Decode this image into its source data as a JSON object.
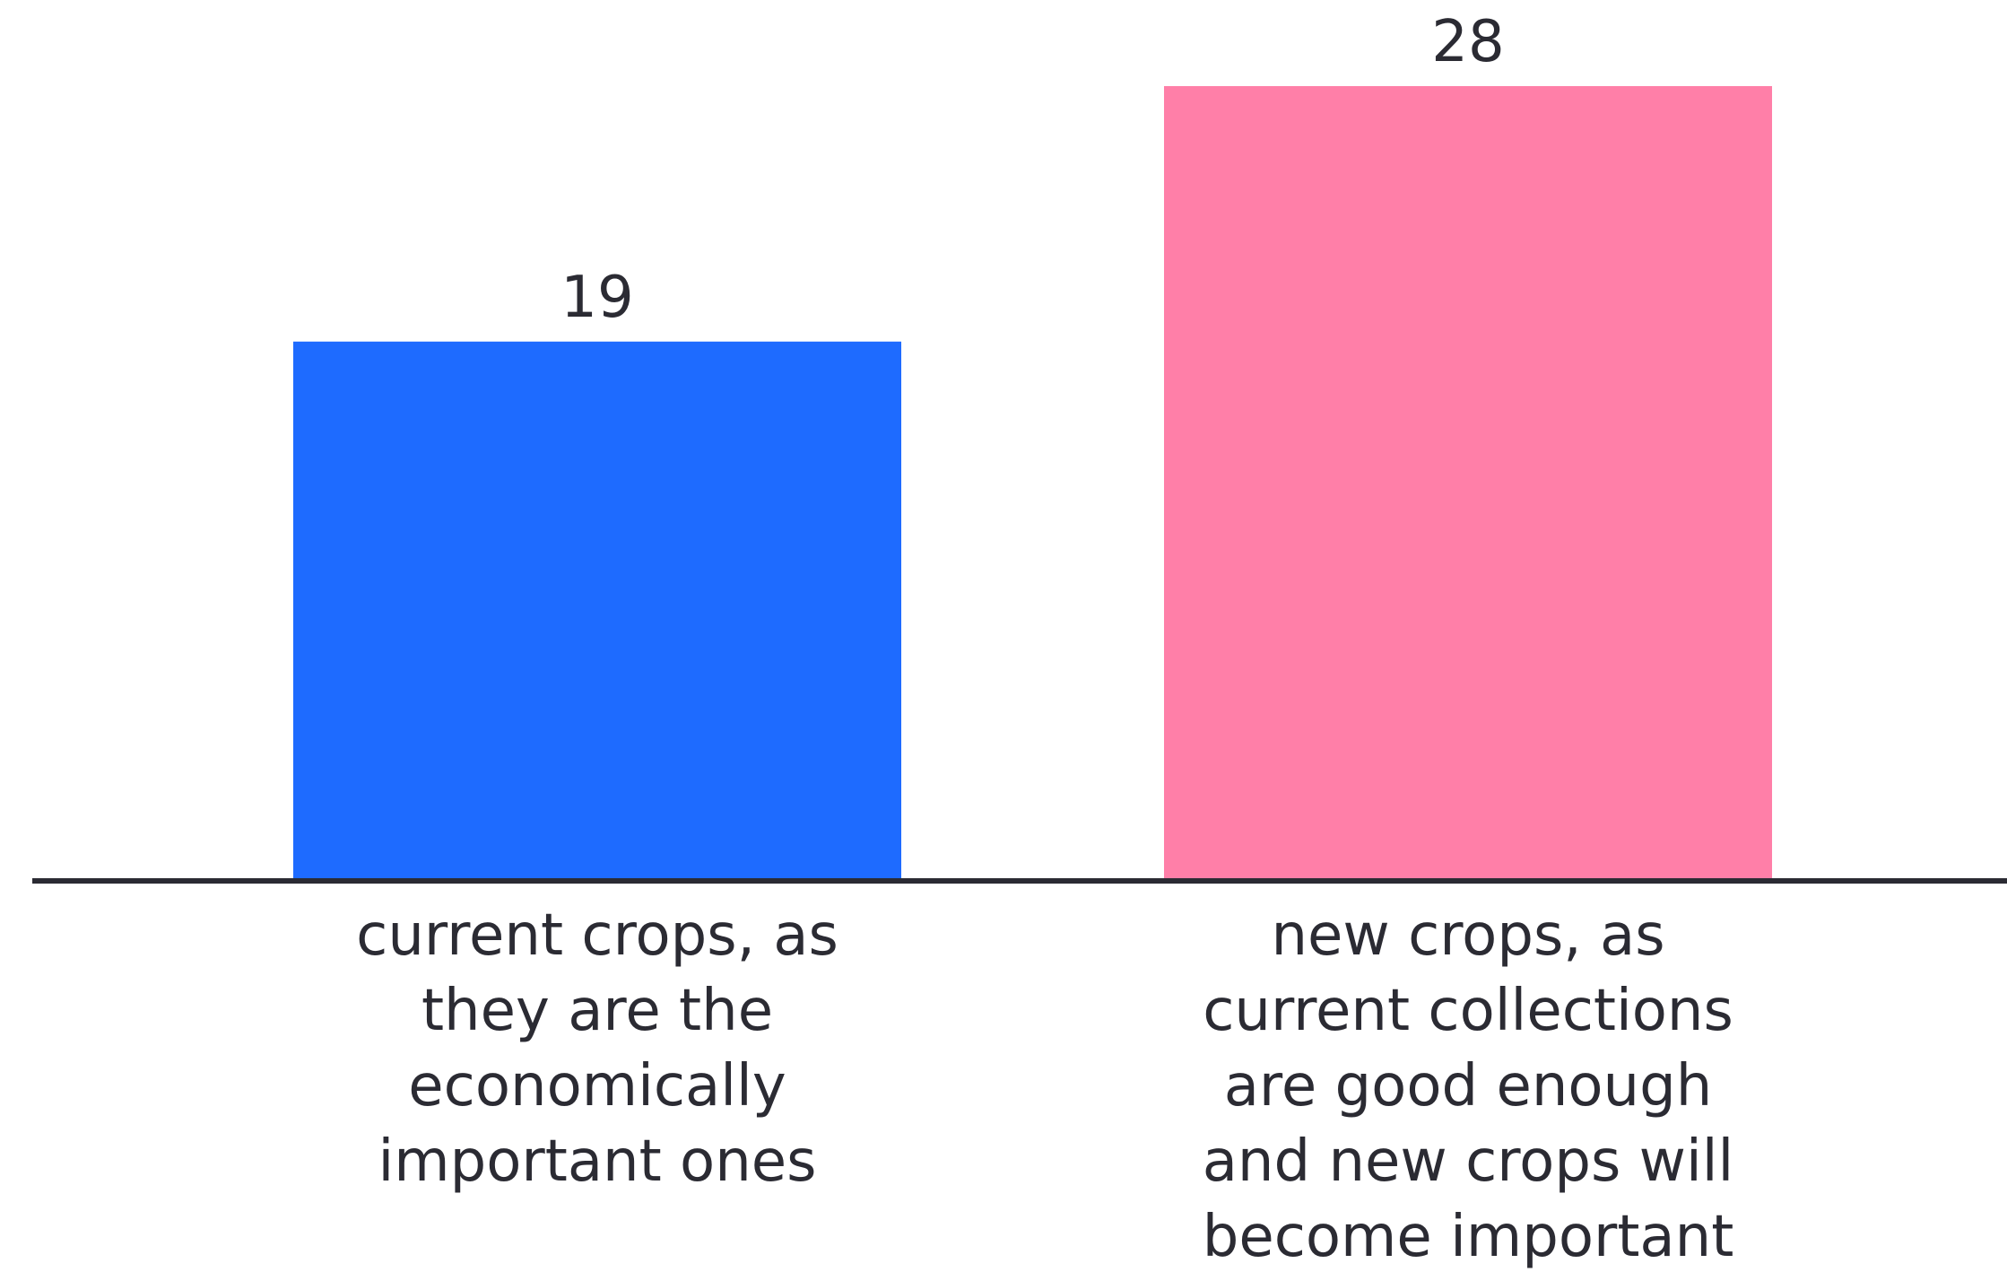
{
  "chart_data": {
    "type": "bar",
    "title": "",
    "xlabel": "",
    "ylabel": "",
    "ylim": [
      0,
      28
    ],
    "grid": false,
    "legend": "none",
    "categories": [
      "current crops, as they are the economically important ones",
      "new crops, as current collections are good enough and new crops will become important"
    ],
    "category_lines": [
      [
        "current crops, as",
        "they are the",
        "economically",
        "important ones"
      ],
      [
        "new crops, as",
        "current collections",
        "are good enough",
        "and new crops will",
        "become important"
      ]
    ],
    "values": [
      19,
      28
    ],
    "colors": [
      "#1e6bff",
      "#ff7fa8"
    ],
    "axis_color": "#2b2b33"
  }
}
